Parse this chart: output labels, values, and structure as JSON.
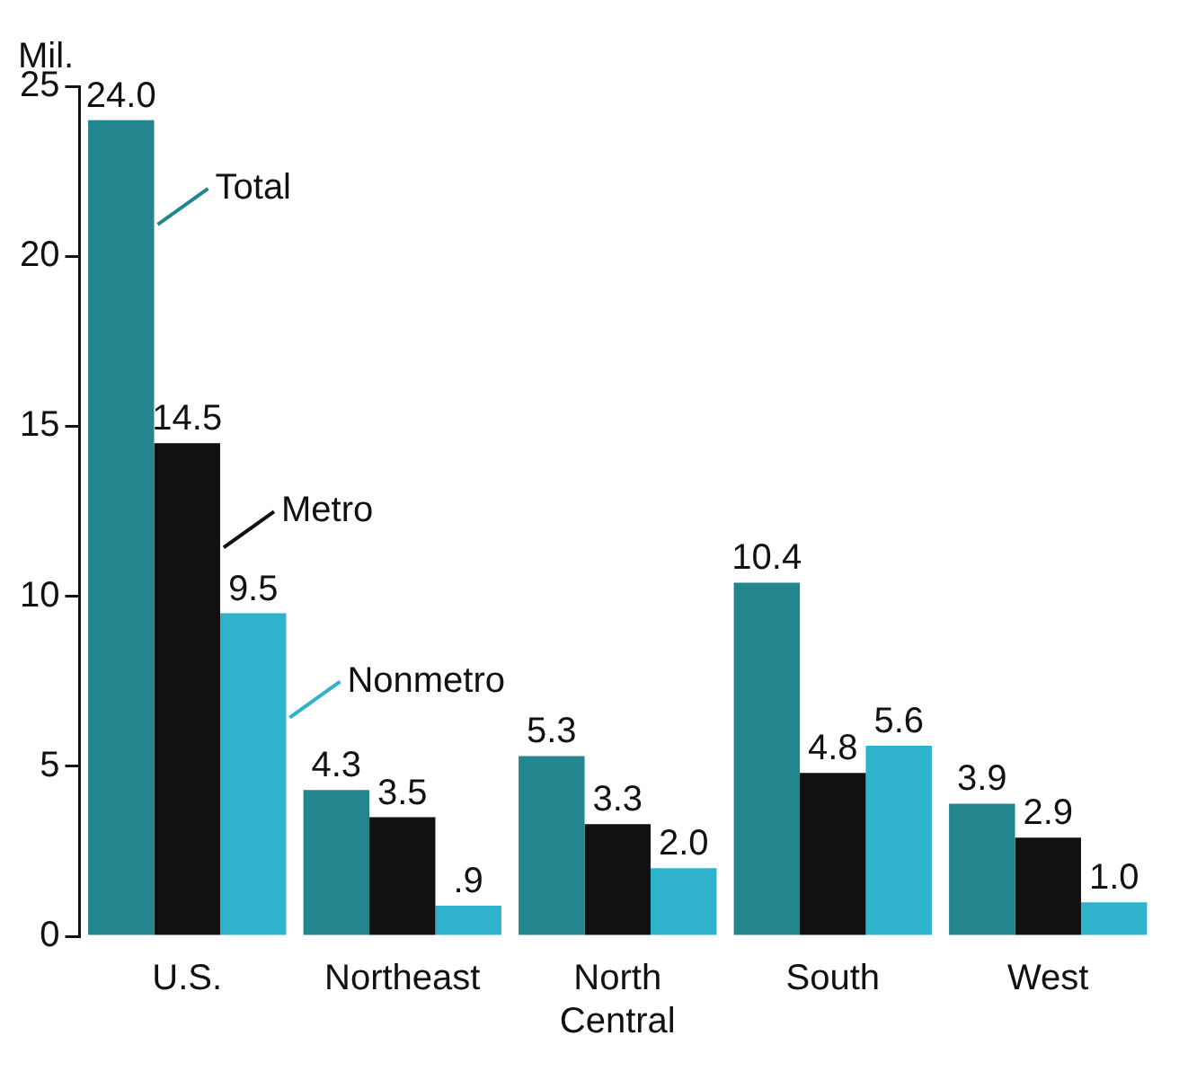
{
  "chart_data": {
    "type": "bar",
    "ylabel": "Mil.",
    "categories": [
      "U.S.",
      "Northeast",
      "North Central",
      "South",
      "West"
    ],
    "series": [
      {
        "name": "Total",
        "color": "#23868f",
        "values": [
          24.0,
          4.3,
          5.3,
          10.4,
          3.9
        ],
        "value_labels": [
          "24.0",
          "4.3",
          "5.3",
          "10.4",
          "3.9"
        ]
      },
      {
        "name": "Metro",
        "color": "#111111",
        "values": [
          14.5,
          3.5,
          3.3,
          4.8,
          2.9
        ],
        "value_labels": [
          "14.5",
          "3.5",
          "3.3",
          "4.8",
          "2.9"
        ]
      },
      {
        "name": "Nonmetro",
        "color": "#2fb3cc",
        "values": [
          9.5,
          0.9,
          2.0,
          5.6,
          1.0
        ],
        "value_labels": [
          "9.5",
          ".9",
          "2.0",
          "5.6",
          "1.0"
        ]
      }
    ],
    "ylim": [
      0,
      25
    ],
    "yticks": [
      0,
      5,
      10,
      15,
      20,
      25
    ],
    "grid": false,
    "legend": "top"
  }
}
